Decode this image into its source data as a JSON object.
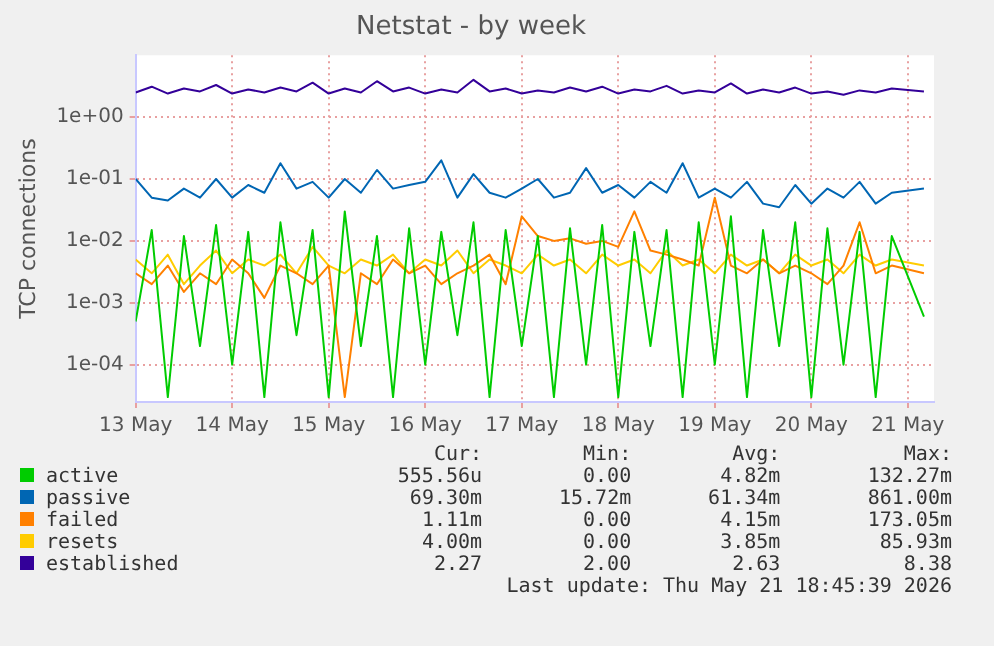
{
  "chart_data": {
    "type": "line",
    "title": "Netstat - by week",
    "ylabel": "TCP connections",
    "x": [
      "2026-05-13T00:00",
      "2026-05-13T04:00",
      "2026-05-13T08:00",
      "2026-05-13T12:00",
      "2026-05-13T16:00",
      "2026-05-13T20:00",
      "2026-05-14T00:00",
      "2026-05-14T04:00",
      "2026-05-14T08:00",
      "2026-05-14T12:00",
      "2026-05-14T16:00",
      "2026-05-14T20:00",
      "2026-05-15T00:00",
      "2026-05-15T04:00",
      "2026-05-15T08:00",
      "2026-05-15T12:00",
      "2026-05-15T16:00",
      "2026-05-15T20:00",
      "2026-05-16T00:00",
      "2026-05-16T04:00",
      "2026-05-16T08:00",
      "2026-05-16T12:00",
      "2026-05-16T16:00",
      "2026-05-16T20:00",
      "2026-05-17T00:00",
      "2026-05-17T04:00",
      "2026-05-17T08:00",
      "2026-05-17T12:00",
      "2026-05-17T16:00",
      "2026-05-17T20:00",
      "2026-05-18T00:00",
      "2026-05-18T04:00",
      "2026-05-18T08:00",
      "2026-05-18T12:00",
      "2026-05-18T16:00",
      "2026-05-18T20:00",
      "2026-05-19T00:00",
      "2026-05-19T04:00",
      "2026-05-19T08:00",
      "2026-05-19T12:00",
      "2026-05-19T16:00",
      "2026-05-19T20:00",
      "2026-05-20T00:00",
      "2026-05-20T04:00",
      "2026-05-20T08:00",
      "2026-05-20T12:00",
      "2026-05-20T16:00",
      "2026-05-20T20:00",
      "2026-05-21T04:00"
    ],
    "series": [
      {
        "name": "active",
        "color": "#00cc00",
        "values": [
          0.0005,
          0.015,
          3e-05,
          0.012,
          0.0002,
          0.018,
          0.0001,
          0.014,
          3e-05,
          0.02,
          0.0003,
          0.015,
          3e-05,
          0.03,
          0.0002,
          0.012,
          3e-05,
          0.016,
          0.0001,
          0.014,
          0.0003,
          0.02,
          3e-05,
          0.015,
          0.0002,
          0.012,
          3e-05,
          0.016,
          0.0001,
          0.018,
          3e-05,
          0.014,
          0.0002,
          0.015,
          3e-05,
          0.02,
          0.0001,
          0.025,
          3e-05,
          0.015,
          0.0002,
          0.02,
          3e-05,
          0.016,
          0.0001,
          0.014,
          3e-05,
          0.012,
          0.0006
        ]
      },
      {
        "name": "passive",
        "color": "#0066b3",
        "values": [
          0.1,
          0.05,
          0.045,
          0.07,
          0.05,
          0.1,
          0.05,
          0.08,
          0.06,
          0.18,
          0.07,
          0.09,
          0.05,
          0.1,
          0.06,
          0.14,
          0.07,
          0.08,
          0.09,
          0.2,
          0.05,
          0.12,
          0.06,
          0.05,
          0.07,
          0.1,
          0.05,
          0.06,
          0.15,
          0.06,
          0.08,
          0.05,
          0.09,
          0.06,
          0.18,
          0.05,
          0.07,
          0.05,
          0.09,
          0.04,
          0.035,
          0.08,
          0.04,
          0.07,
          0.05,
          0.09,
          0.04,
          0.06,
          0.07
        ]
      },
      {
        "name": "failed",
        "color": "#ff8000",
        "values": [
          0.003,
          0.002,
          0.004,
          0.0015,
          0.003,
          0.002,
          0.005,
          0.003,
          0.0012,
          0.004,
          0.003,
          0.002,
          0.004,
          3e-05,
          0.003,
          0.002,
          0.005,
          0.003,
          0.004,
          0.002,
          0.003,
          0.004,
          0.006,
          0.002,
          0.025,
          0.012,
          0.01,
          0.011,
          0.009,
          0.01,
          0.008,
          0.03,
          0.007,
          0.006,
          0.005,
          0.004,
          0.05,
          0.004,
          0.003,
          0.005,
          0.003,
          0.004,
          0.003,
          0.002,
          0.004,
          0.02,
          0.003,
          0.004,
          0.003
        ]
      },
      {
        "name": "resets",
        "color": "#ffcc00",
        "values": [
          0.005,
          0.003,
          0.006,
          0.002,
          0.004,
          0.007,
          0.003,
          0.005,
          0.004,
          0.006,
          0.003,
          0.008,
          0.004,
          0.003,
          0.005,
          0.004,
          0.006,
          0.003,
          0.005,
          0.004,
          0.007,
          0.003,
          0.005,
          0.004,
          0.003,
          0.006,
          0.004,
          0.005,
          0.003,
          0.006,
          0.004,
          0.005,
          0.003,
          0.007,
          0.004,
          0.005,
          0.003,
          0.006,
          0.004,
          0.005,
          0.003,
          0.006,
          0.004,
          0.005,
          0.003,
          0.006,
          0.004,
          0.005,
          0.004
        ]
      },
      {
        "name": "established",
        "color": "#330099",
        "values": [
          2.5,
          3.1,
          2.4,
          2.9,
          2.6,
          3.3,
          2.4,
          2.8,
          2.5,
          3.0,
          2.6,
          3.6,
          2.4,
          2.9,
          2.5,
          3.8,
          2.6,
          3.0,
          2.4,
          2.8,
          2.5,
          4.0,
          2.6,
          2.9,
          2.4,
          2.7,
          2.5,
          3.0,
          2.6,
          3.1,
          2.4,
          2.8,
          2.6,
          3.2,
          2.4,
          2.7,
          2.5,
          3.5,
          2.4,
          2.8,
          2.5,
          3.0,
          2.4,
          2.6,
          2.3,
          2.7,
          2.5,
          2.9,
          2.6
        ]
      }
    ],
    "xlim": [
      "2026-05-13T00:00",
      "2026-05-21T06:30"
    ],
    "xticks": [
      {
        "value": "2026-05-13",
        "label": "13 May"
      },
      {
        "value": "2026-05-14",
        "label": "14 May"
      },
      {
        "value": "2026-05-15",
        "label": "15 May"
      },
      {
        "value": "2026-05-16",
        "label": "16 May"
      },
      {
        "value": "2026-05-17",
        "label": "17 May"
      },
      {
        "value": "2026-05-18",
        "label": "18 May"
      },
      {
        "value": "2026-05-19",
        "label": "19 May"
      },
      {
        "value": "2026-05-20",
        "label": "20 May"
      },
      {
        "value": "2026-05-21",
        "label": "21 May"
      }
    ],
    "ylim": [
      2.5e-05,
      10
    ],
    "yticks": [
      {
        "value": 0.0001,
        "label": "1e-04"
      },
      {
        "value": 0.001,
        "label": "1e-03"
      },
      {
        "value": 0.01,
        "label": "1e-02"
      },
      {
        "value": 0.1,
        "label": "1e-01"
      },
      {
        "value": 1,
        "label": "1e+00"
      }
    ],
    "log": "y",
    "grid": true,
    "legend": "bottom",
    "marker": "none",
    "line_style": "solid",
    "annotations": [
      "Cur:",
      "Min:",
      "Avg:",
      "Max:",
      "555.56u",
      "0.00",
      "4.82m",
      "132.27m",
      "69.30m",
      "15.72m",
      "61.34m",
      "861.00m",
      "1.11m",
      "0.00",
      "4.15m",
      "173.05m",
      "4.00m",
      "0.00",
      "3.85m",
      "85.93m",
      "2.27",
      "2.00",
      "2.63",
      "8.38",
      "Last update: Thu May 21 18:45:39 2026"
    ]
  }
}
